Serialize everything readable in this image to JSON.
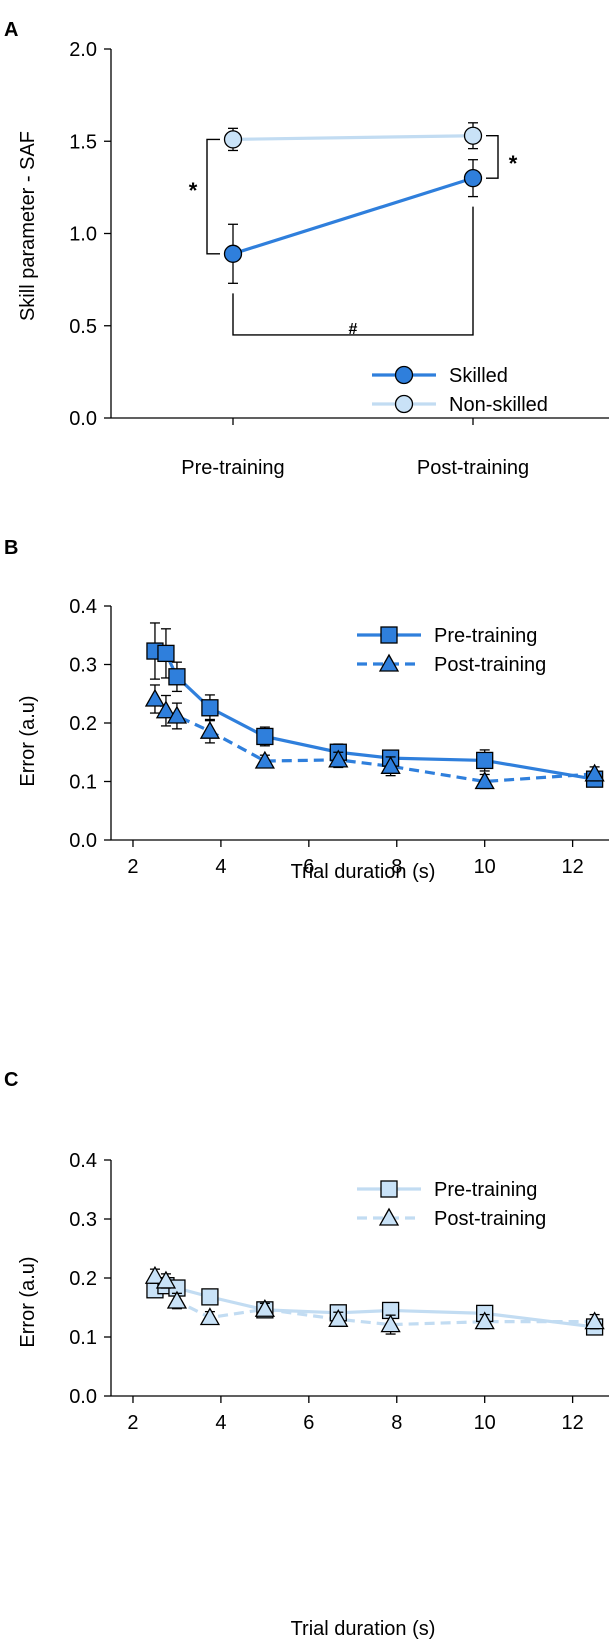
{
  "colors": {
    "skilled": "#2f7fdc",
    "non_skilled": "#c9e2f7",
    "light_line": "#c2dcf2",
    "axis": "#000000"
  },
  "chart_data": [
    {
      "panel": "A",
      "type": "line",
      "ylabel": "Skill parameter - SAF",
      "xlabel": "",
      "categories": [
        "Pre-training",
        "Post-training"
      ],
      "ylim": [
        0,
        2
      ],
      "yticks": [
        "0.0",
        "0.5",
        "1.0",
        "1.5",
        "2.0"
      ],
      "series": [
        {
          "name": "Skilled",
          "marker": "circle",
          "color": "#2f7fdc",
          "values": [
            0.89,
            1.3
          ],
          "errors": [
            0.16,
            0.1
          ]
        },
        {
          "name": "Non-skilled",
          "marker": "circle",
          "color": "#c9e2f7",
          "values": [
            1.51,
            1.53
          ],
          "errors": [
            0.06,
            0.07
          ]
        }
      ],
      "annotations": {
        "star_pre": "*",
        "star_post": "*",
        "hash": "#"
      }
    },
    {
      "panel": "B",
      "type": "line",
      "xlabel": "Trial duration (s)",
      "ylabel": "Error (a.u)",
      "xlim": [
        1.5,
        12.6
      ],
      "ylim": [
        0,
        0.4
      ],
      "xticks": [
        "2",
        "4",
        "6",
        "8",
        "10",
        "12"
      ],
      "yticks": [
        "0.0",
        "0.1",
        "0.2",
        "0.3",
        "0.4"
      ],
      "series": [
        {
          "name": "Pre-training",
          "marker": "square",
          "dash": false,
          "color": "#2f7fdc",
          "x": [
            2.5,
            2.75,
            3.0,
            3.75,
            5.0,
            6.67,
            7.86,
            10.0,
            12.5
          ],
          "y": [
            0.323,
            0.319,
            0.279,
            0.226,
            0.177,
            0.15,
            0.14,
            0.136,
            0.104
          ],
          "err": [
            0.048,
            0.042,
            0.025,
            0.022,
            0.016,
            0.014,
            0.013,
            0.018,
            0.012
          ]
        },
        {
          "name": "Post-training",
          "marker": "triangle",
          "dash": true,
          "color": "#2f7fdc",
          "x": [
            2.5,
            2.75,
            3.0,
            3.75,
            5.0,
            6.67,
            7.86,
            10.0,
            12.5
          ],
          "y": [
            0.241,
            0.221,
            0.212,
            0.186,
            0.135,
            0.137,
            0.126,
            0.1,
            0.113
          ],
          "err": [
            0.024,
            0.026,
            0.022,
            0.02,
            0.01,
            0.013,
            0.016,
            0.012,
            0.012
          ]
        }
      ]
    },
    {
      "panel": "C",
      "type": "line",
      "xlabel": "Trial duration (s)",
      "ylabel": "Error (a.u)",
      "xlim": [
        1.5,
        12.6
      ],
      "ylim": [
        0,
        0.4
      ],
      "xticks": [
        "2",
        "4",
        "6",
        "8",
        "10",
        "12"
      ],
      "yticks": [
        "0.0",
        "0.1",
        "0.2",
        "0.3",
        "0.4"
      ],
      "series": [
        {
          "name": "Pre-training",
          "marker": "square",
          "dash": false,
          "color": "#c9e2f7",
          "x": [
            2.5,
            2.75,
            3.0,
            3.75,
            5.0,
            6.67,
            7.86,
            10.0,
            12.5
          ],
          "y": [
            0.18,
            0.187,
            0.183,
            0.168,
            0.146,
            0.141,
            0.145,
            0.14,
            0.117
          ],
          "err": [
            0.012,
            0.013,
            0.011,
            0.012,
            0.011,
            0.01,
            0.013,
            0.011,
            0.01
          ]
        },
        {
          "name": "Post-training",
          "marker": "triangle",
          "dash": true,
          "color": "#c9e2f7",
          "x": [
            2.5,
            2.75,
            3.0,
            3.75,
            5.0,
            6.67,
            7.86,
            10.0,
            12.5
          ],
          "y": [
            0.203,
            0.195,
            0.161,
            0.133,
            0.147,
            0.13,
            0.121,
            0.126,
            0.126
          ],
          "err": [
            0.012,
            0.012,
            0.013,
            0.01,
            0.01,
            0.012,
            0.016,
            0.012,
            0.012
          ]
        }
      ]
    }
  ],
  "panel_labels": [
    "A",
    "B",
    "C"
  ]
}
